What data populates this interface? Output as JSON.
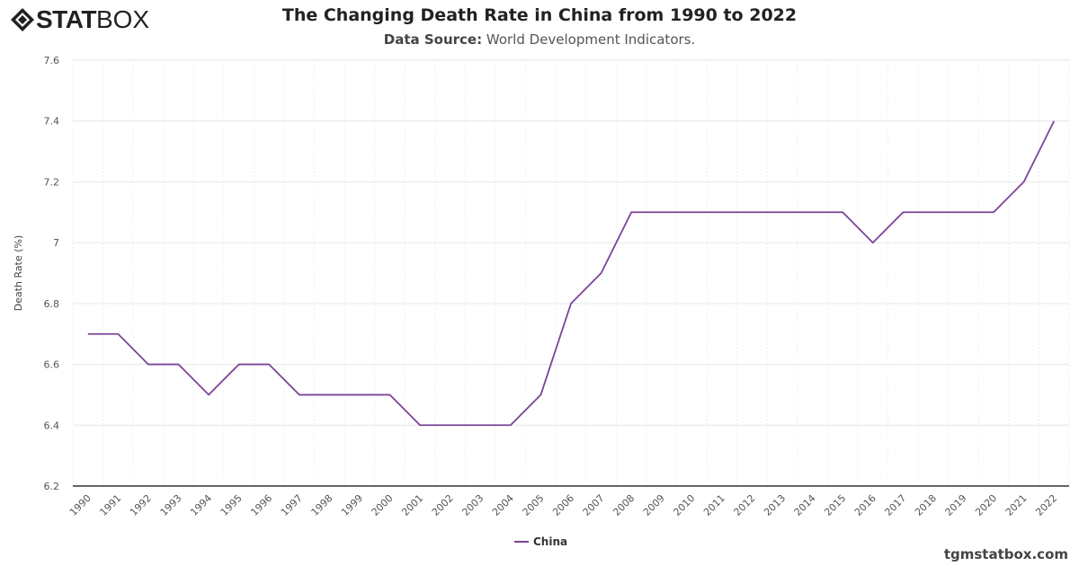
{
  "logo": {
    "text_bold": "STAT",
    "text_light": "BOX"
  },
  "header": {
    "title": "The Changing Death Rate in China from 1990 to 2022",
    "source_label": "Data Source:",
    "source_value": "World Development Indicators."
  },
  "credit": "tgmstatbox.com",
  "chart_data": {
    "type": "line",
    "title": "The Changing Death Rate in China from 1990 to 2022",
    "xlabel": "",
    "ylabel": "Death Rate (%)",
    "ylim": [
      6.2,
      7.6
    ],
    "yticks": [
      "6.2",
      "6.4",
      "6.6",
      "6.8",
      "7",
      "7.2",
      "7.4",
      "7.6"
    ],
    "grid": true,
    "legend": "bottom-center",
    "categories": [
      "1990",
      "1991",
      "1992",
      "1993",
      "1994",
      "1995",
      "1996",
      "1997",
      "1998",
      "1999",
      "2000",
      "2001",
      "2002",
      "2003",
      "2004",
      "2005",
      "2006",
      "2007",
      "2008",
      "2009",
      "2010",
      "2011",
      "2012",
      "2013",
      "2014",
      "2015",
      "2016",
      "2017",
      "2018",
      "2019",
      "2020",
      "2021",
      "2022"
    ],
    "series": [
      {
        "name": "China",
        "color": "#7b4397",
        "values": [
          6.7,
          6.7,
          6.6,
          6.6,
          6.5,
          6.6,
          6.6,
          6.5,
          6.5,
          6.5,
          6.5,
          6.4,
          6.4,
          6.4,
          6.4,
          6.5,
          6.8,
          6.9,
          7.1,
          7.1,
          7.1,
          7.1,
          7.1,
          7.1,
          7.1,
          7.1,
          7.0,
          7.1,
          7.1,
          7.1,
          7.1,
          7.2,
          7.4
        ]
      }
    ]
  }
}
